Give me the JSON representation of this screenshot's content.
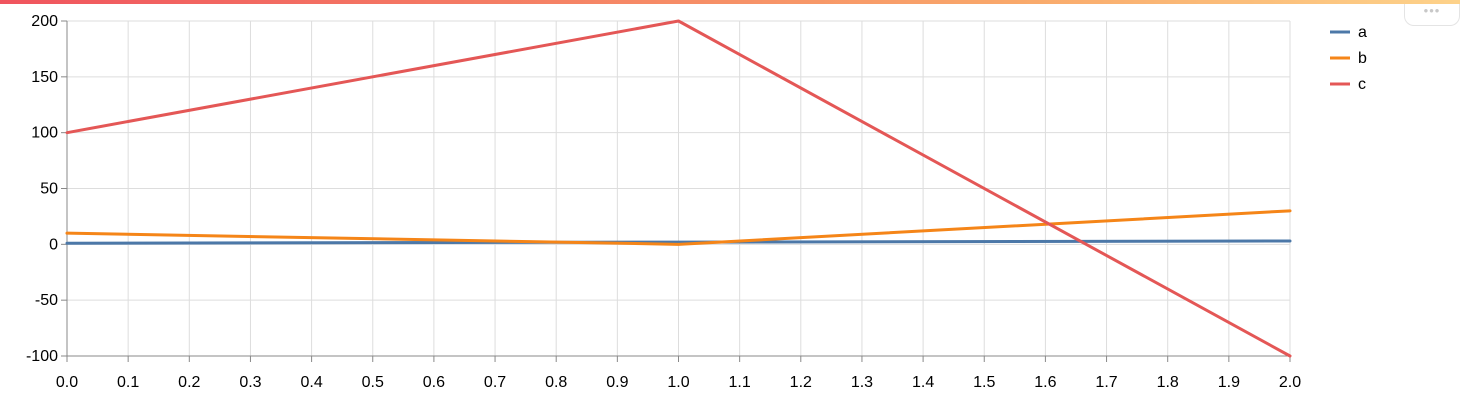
{
  "toolbar": {
    "menu_icon": "ellipsis-icon",
    "menu_label": "•••"
  },
  "chart_data": {
    "type": "line",
    "x": [
      0.0,
      1.0,
      2.0
    ],
    "series": [
      {
        "name": "a",
        "color": "#4c78a8",
        "values": [
          1,
          2,
          3
        ]
      },
      {
        "name": "b",
        "color": "#f58518",
        "values": [
          10,
          0,
          30
        ]
      },
      {
        "name": "c",
        "color": "#e45756",
        "values": [
          100,
          200,
          -100
        ]
      }
    ],
    "xticks": [
      "0.0",
      "0.1",
      "0.2",
      "0.3",
      "0.4",
      "0.5",
      "0.6",
      "0.7",
      "0.8",
      "0.9",
      "1.0",
      "1.1",
      "1.2",
      "1.3",
      "1.4",
      "1.5",
      "1.6",
      "1.7",
      "1.8",
      "1.9",
      "2.0"
    ],
    "yticks": [
      "200",
      "150",
      "100",
      "50",
      "0",
      "-50",
      "-100"
    ],
    "xlim": [
      0,
      2
    ],
    "ylim": [
      -100,
      200
    ],
    "grid": true,
    "legend": "top-right",
    "title": "",
    "xlabel": "",
    "ylabel": ""
  }
}
